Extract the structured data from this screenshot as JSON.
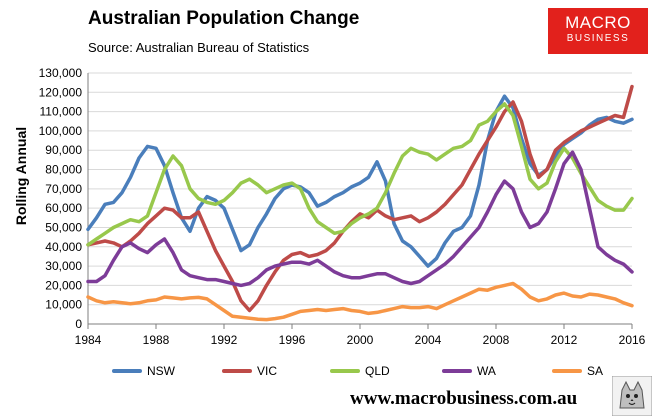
{
  "header": {
    "title": "Australian Population Change",
    "source": "Source: Australian Bureau of Statistics"
  },
  "logo": {
    "line1": "MACRO",
    "line2": "BUSINESS"
  },
  "footer": {
    "website": "www.macrobusiness.com.au"
  },
  "chart_data": {
    "type": "line",
    "title": "Australian Population Change",
    "ylabel": "Rolling Annual",
    "xlabel": "",
    "xlim": [
      1984,
      2016
    ],
    "ylim": [
      0,
      130000
    ],
    "x_ticks": [
      1984,
      1988,
      1992,
      1996,
      2000,
      2004,
      2008,
      2012,
      2016
    ],
    "y_ticks": [
      0,
      10000,
      20000,
      30000,
      40000,
      50000,
      60000,
      70000,
      80000,
      90000,
      100000,
      110000,
      120000,
      130000
    ],
    "y_tick_labels": [
      "0",
      "10,000",
      "20,000",
      "30,000",
      "40,000",
      "50,000",
      "60,000",
      "70,000",
      "80,000",
      "90,000",
      "100,000",
      "110,000",
      "120,000",
      "130,000"
    ],
    "grid": true,
    "legend_position": "bottom",
    "series": [
      {
        "name": "NSW",
        "color": "#4a7ebb",
        "x": [
          1984,
          1984.5,
          1985,
          1985.5,
          1986,
          1986.5,
          1987,
          1987.5,
          1988,
          1988.5,
          1989,
          1989.5,
          1990,
          1990.5,
          1991,
          1991.5,
          1992,
          1992.5,
          1993,
          1993.5,
          1994,
          1994.5,
          1995,
          1995.5,
          1996,
          1996.5,
          1997,
          1997.5,
          1998,
          1998.5,
          1999,
          1999.5,
          2000,
          2000.5,
          2001,
          2001.5,
          2002,
          2002.5,
          2003,
          2003.5,
          2004,
          2004.5,
          2005,
          2005.5,
          2006,
          2006.5,
          2007,
          2007.5,
          2008,
          2008.5,
          2009,
          2009.5,
          2010,
          2010.5,
          2011,
          2011.5,
          2012,
          2012.5,
          2013,
          2013.5,
          2014,
          2014.5,
          2015,
          2015.5,
          2016
        ],
        "values": [
          49000,
          55000,
          62000,
          63000,
          68000,
          76000,
          86000,
          92000,
          91000,
          82000,
          68000,
          55000,
          48000,
          60000,
          66000,
          64000,
          60000,
          49000,
          38000,
          41000,
          50000,
          57000,
          65000,
          70000,
          72000,
          71000,
          68000,
          61000,
          63000,
          66000,
          68000,
          71000,
          73000,
          76000,
          84000,
          74000,
          52000,
          43000,
          40000,
          35000,
          30000,
          34000,
          42000,
          48000,
          50000,
          56000,
          72000,
          95000,
          110000,
          118000,
          112000,
          96000,
          83000,
          77000,
          80000,
          87000,
          93000,
          96000,
          99000,
          103000,
          106000,
          107000,
          105000,
          104000,
          106000
        ]
      },
      {
        "name": "VIC",
        "color": "#be4b48",
        "x": [
          1984,
          1984.5,
          1985,
          1985.5,
          1986,
          1986.5,
          1987,
          1987.5,
          1988,
          1988.5,
          1989,
          1989.5,
          1990,
          1990.5,
          1991,
          1991.5,
          1992,
          1992.5,
          1993,
          1993.5,
          1994,
          1994.5,
          1995,
          1995.5,
          1996,
          1996.5,
          1997,
          1997.5,
          1998,
          1998.5,
          1999,
          1999.5,
          2000,
          2000.5,
          2001,
          2001.5,
          2002,
          2002.5,
          2003,
          2003.5,
          2004,
          2004.5,
          2005,
          2005.5,
          2006,
          2006.5,
          2007,
          2007.5,
          2008,
          2008.5,
          2009,
          2009.5,
          2010,
          2010.5,
          2011,
          2011.5,
          2012,
          2012.5,
          2013,
          2013.5,
          2014,
          2014.5,
          2015,
          2015.5,
          2016
        ],
        "values": [
          41000,
          42000,
          43000,
          42000,
          40000,
          43000,
          47000,
          52000,
          56000,
          60000,
          59000,
          55000,
          55000,
          58000,
          48000,
          38000,
          30000,
          22000,
          12000,
          7000,
          12000,
          20000,
          27000,
          33000,
          36000,
          37000,
          35000,
          36000,
          38000,
          42000,
          48000,
          53000,
          57000,
          55000,
          59000,
          56000,
          54000,
          55000,
          56000,
          53000,
          55000,
          58000,
          62000,
          67000,
          72000,
          80000,
          88000,
          95000,
          102000,
          110000,
          115000,
          105000,
          88000,
          76000,
          80000,
          90000,
          94000,
          97000,
          100000,
          102000,
          104000,
          106000,
          108000,
          107000,
          123000
        ]
      },
      {
        "name": "QLD",
        "color": "#98c84c",
        "x": [
          1984,
          1984.5,
          1985,
          1985.5,
          1986,
          1986.5,
          1987,
          1987.5,
          1988,
          1988.5,
          1989,
          1989.5,
          1990,
          1990.5,
          1991,
          1991.5,
          1992,
          1992.5,
          1993,
          1993.5,
          1994,
          1994.5,
          1995,
          1995.5,
          1996,
          1996.5,
          1997,
          1997.5,
          1998,
          1998.5,
          1999,
          1999.5,
          2000,
          2000.5,
          2001,
          2001.5,
          2002,
          2002.5,
          2003,
          2003.5,
          2004,
          2004.5,
          2005,
          2005.5,
          2006,
          2006.5,
          2007,
          2007.5,
          2008,
          2008.5,
          2009,
          2009.5,
          2010,
          2010.5,
          2011,
          2011.5,
          2012,
          2012.5,
          2013,
          2013.5,
          2014,
          2014.5,
          2015,
          2015.5,
          2016
        ],
        "values": [
          41000,
          44000,
          47000,
          50000,
          52000,
          54000,
          53000,
          56000,
          68000,
          80000,
          87000,
          82000,
          70000,
          65000,
          63000,
          62000,
          64000,
          68000,
          73000,
          75000,
          72000,
          68000,
          70000,
          72000,
          73000,
          70000,
          60000,
          53000,
          50000,
          47000,
          48000,
          52000,
          55000,
          57000,
          60000,
          68000,
          78000,
          87000,
          91000,
          89000,
          88000,
          85000,
          88000,
          91000,
          92000,
          95000,
          103000,
          105000,
          110000,
          114000,
          108000,
          92000,
          75000,
          70000,
          73000,
          84000,
          91000,
          86000,
          78000,
          71000,
          64000,
          61000,
          59000,
          59000,
          65000
        ]
      },
      {
        "name": "WA",
        "color": "#7d3c98",
        "x": [
          1984,
          1984.5,
          1985,
          1985.5,
          1986,
          1986.5,
          1987,
          1987.5,
          1988,
          1988.5,
          1989,
          1989.5,
          1990,
          1990.5,
          1991,
          1991.5,
          1992,
          1992.5,
          1993,
          1993.5,
          1994,
          1994.5,
          1995,
          1995.5,
          1996,
          1996.5,
          1997,
          1997.5,
          1998,
          1998.5,
          1999,
          1999.5,
          2000,
          2000.5,
          2001,
          2001.5,
          2002,
          2002.5,
          2003,
          2003.5,
          2004,
          2004.5,
          2005,
          2005.5,
          2006,
          2006.5,
          2007,
          2007.5,
          2008,
          2008.5,
          2009,
          2009.5,
          2010,
          2010.5,
          2011,
          2011.5,
          2012,
          2012.5,
          2013,
          2013.5,
          2014,
          2014.5,
          2015,
          2015.5,
          2016
        ],
        "values": [
          22000,
          22000,
          25000,
          33000,
          40000,
          42000,
          39000,
          37000,
          41000,
          44000,
          37000,
          28000,
          25000,
          24000,
          23000,
          23000,
          22000,
          21000,
          20000,
          21000,
          24000,
          28000,
          30000,
          31000,
          32000,
          32000,
          31000,
          33000,
          30000,
          27000,
          25000,
          24000,
          24000,
          25000,
          26000,
          26000,
          24000,
          22000,
          21000,
          22000,
          25000,
          28000,
          31000,
          35000,
          40000,
          45000,
          50000,
          58000,
          67000,
          74000,
          70000,
          58000,
          50000,
          52000,
          58000,
          70000,
          83000,
          89000,
          80000,
          60000,
          40000,
          36000,
          33000,
          31000,
          27000
        ]
      },
      {
        "name": "SA",
        "color": "#f79646",
        "x": [
          1984,
          1984.5,
          1985,
          1985.5,
          1986,
          1986.5,
          1987,
          1987.5,
          1988,
          1988.5,
          1989,
          1989.5,
          1990,
          1990.5,
          1991,
          1991.5,
          1992,
          1992.5,
          1993,
          1993.5,
          1994,
          1994.5,
          1995,
          1995.5,
          1996,
          1996.5,
          1997,
          1997.5,
          1998,
          1998.5,
          1999,
          1999.5,
          2000,
          2000.5,
          2001,
          2001.5,
          2002,
          2002.5,
          2003,
          2003.5,
          2004,
          2004.5,
          2005,
          2005.5,
          2006,
          2006.5,
          2007,
          2007.5,
          2008,
          2008.5,
          2009,
          2009.5,
          2010,
          2010.5,
          2011,
          2011.5,
          2012,
          2012.5,
          2013,
          2013.5,
          2014,
          2014.5,
          2015,
          2015.5,
          2016
        ],
        "values": [
          14000,
          12000,
          11000,
          11500,
          11000,
          10500,
          11000,
          12000,
          12500,
          14000,
          13500,
          13000,
          13500,
          13800,
          13000,
          10000,
          7000,
          4000,
          3500,
          3000,
          2500,
          2300,
          2800,
          3500,
          5000,
          6500,
          7000,
          7500,
          7000,
          7500,
          8000,
          7000,
          6500,
          5500,
          6000,
          7000,
          8000,
          9000,
          8500,
          8500,
          9000,
          8000,
          10000,
          12000,
          14000,
          16000,
          18000,
          17500,
          19000,
          20000,
          21000,
          18000,
          14000,
          12000,
          13000,
          15000,
          16000,
          14500,
          14000,
          15500,
          15000,
          14000,
          13000,
          11000,
          9500
        ]
      }
    ]
  }
}
